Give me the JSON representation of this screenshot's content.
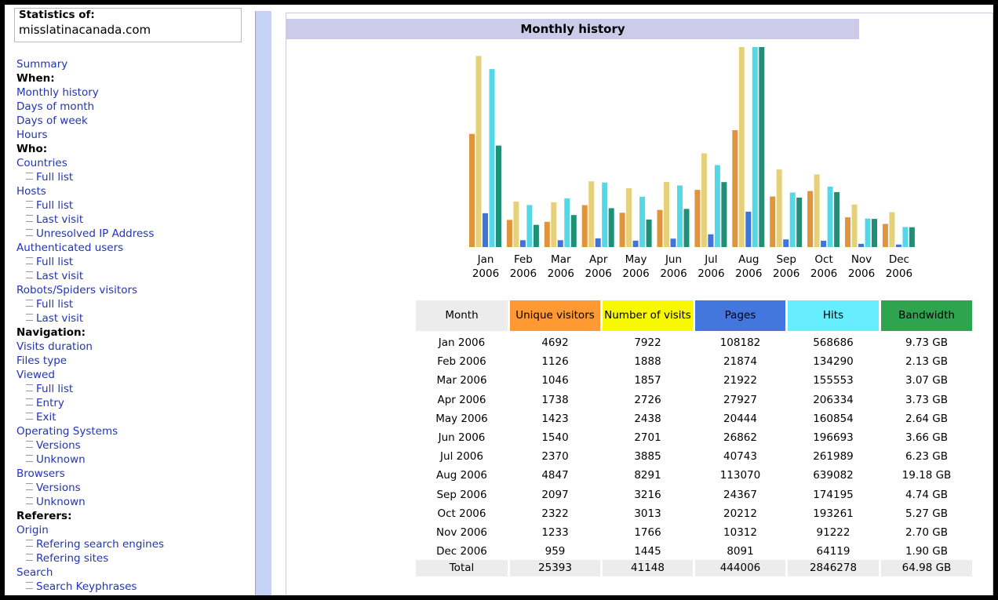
{
  "sidebar": {
    "heading": "Statistics of:",
    "site": "misslatinacanada.com",
    "items": [
      {
        "text": "Summary",
        "kind": "link"
      },
      {
        "text": "When:",
        "kind": "heading"
      },
      {
        "text": "Monthly history",
        "kind": "link"
      },
      {
        "text": "Days of month",
        "kind": "link"
      },
      {
        "text": "Days of week",
        "kind": "link"
      },
      {
        "text": "Hours",
        "kind": "link"
      },
      {
        "text": "Who:",
        "kind": "heading"
      },
      {
        "text": "Countries",
        "kind": "link"
      },
      {
        "text": "Full list",
        "kind": "sub"
      },
      {
        "text": "Hosts",
        "kind": "link"
      },
      {
        "text": "Full list",
        "kind": "sub"
      },
      {
        "text": "Last visit",
        "kind": "sub"
      },
      {
        "text": "Unresolved IP Address",
        "kind": "sub"
      },
      {
        "text": "Authenticated users",
        "kind": "link"
      },
      {
        "text": "Full list",
        "kind": "sub"
      },
      {
        "text": "Last visit",
        "kind": "sub"
      },
      {
        "text": "Robots/Spiders visitors",
        "kind": "link"
      },
      {
        "text": "Full list",
        "kind": "sub"
      },
      {
        "text": "Last visit",
        "kind": "sub"
      },
      {
        "text": "Navigation:",
        "kind": "heading"
      },
      {
        "text": "Visits duration",
        "kind": "link"
      },
      {
        "text": "Files type",
        "kind": "link"
      },
      {
        "text": "Viewed",
        "kind": "link"
      },
      {
        "text": "Full list",
        "kind": "sub"
      },
      {
        "text": "Entry",
        "kind": "sub"
      },
      {
        "text": "Exit",
        "kind": "sub"
      },
      {
        "text": "Operating Systems",
        "kind": "link"
      },
      {
        "text": "Versions",
        "kind": "sub"
      },
      {
        "text": "Unknown",
        "kind": "sub"
      },
      {
        "text": "Browsers",
        "kind": "link"
      },
      {
        "text": "Versions",
        "kind": "sub"
      },
      {
        "text": "Unknown",
        "kind": "sub"
      },
      {
        "text": "Referers:",
        "kind": "heading"
      },
      {
        "text": "Origin",
        "kind": "link"
      },
      {
        "text": "Refering search engines",
        "kind": "sub"
      },
      {
        "text": "Refering sites",
        "kind": "sub"
      },
      {
        "text": "Search",
        "kind": "link"
      },
      {
        "text": "Search Keyphrases",
        "kind": "sub"
      }
    ]
  },
  "panel": {
    "title": "Monthly history"
  },
  "chart": {
    "labels": [
      {
        "month": "Jan",
        "year": "2006"
      },
      {
        "month": "Feb",
        "year": "2006"
      },
      {
        "month": "Mar",
        "year": "2006"
      },
      {
        "month": "Apr",
        "year": "2006"
      },
      {
        "month": "May",
        "year": "2006"
      },
      {
        "month": "Jun",
        "year": "2006"
      },
      {
        "month": "Jul",
        "year": "2006"
      },
      {
        "month": "Aug",
        "year": "2006"
      },
      {
        "month": "Sep",
        "year": "2006"
      },
      {
        "month": "Oct",
        "year": "2006"
      },
      {
        "month": "Nov",
        "year": "2006"
      },
      {
        "month": "Dec",
        "year": "2006"
      }
    ],
    "bar_colors": [
      "#e0943c",
      "#e6d07a",
      "#3f74d8",
      "#52d8e8",
      "#1f9077"
    ]
  },
  "table": {
    "headers": [
      {
        "text": "Month",
        "color": "#ececec"
      },
      {
        "text": "Unique visitors",
        "color": "#ff9933"
      },
      {
        "text": "Number of visits",
        "color": "#f8f800"
      },
      {
        "text": "Pages",
        "color": "#4477dd"
      },
      {
        "text": "Hits",
        "color": "#66eeff"
      },
      {
        "text": "Bandwidth",
        "color": "#2ea44f"
      }
    ],
    "rows": [
      {
        "month": "Jan 2006",
        "unique": 4692,
        "visits": 7922,
        "pages": 108182,
        "hits": 568686,
        "bandwidth": {
          "value": 9.73,
          "label": "9.73 GB"
        }
      },
      {
        "month": "Feb 2006",
        "unique": 1126,
        "visits": 1888,
        "pages": 21874,
        "hits": 134290,
        "bandwidth": {
          "value": 2.13,
          "label": "2.13 GB"
        }
      },
      {
        "month": "Mar 2006",
        "unique": 1046,
        "visits": 1857,
        "pages": 21922,
        "hits": 155553,
        "bandwidth": {
          "value": 3.07,
          "label": "3.07 GB"
        }
      },
      {
        "month": "Apr 2006",
        "unique": 1738,
        "visits": 2726,
        "pages": 27927,
        "hits": 206334,
        "bandwidth": {
          "value": 3.73,
          "label": "3.73 GB"
        }
      },
      {
        "month": "May 2006",
        "unique": 1423,
        "visits": 2438,
        "pages": 20444,
        "hits": 160854,
        "bandwidth": {
          "value": 2.64,
          "label": "2.64 GB"
        }
      },
      {
        "month": "Jun 2006",
        "unique": 1540,
        "visits": 2701,
        "pages": 26862,
        "hits": 196693,
        "bandwidth": {
          "value": 3.66,
          "label": "3.66 GB"
        }
      },
      {
        "month": "Jul 2006",
        "unique": 2370,
        "visits": 3885,
        "pages": 40743,
        "hits": 261989,
        "bandwidth": {
          "value": 6.23,
          "label": "6.23 GB"
        }
      },
      {
        "month": "Aug 2006",
        "unique": 4847,
        "visits": 8291,
        "pages": 113070,
        "hits": 639082,
        "bandwidth": {
          "value": 19.18,
          "label": "19.18 GB"
        }
      },
      {
        "month": "Sep 2006",
        "unique": 2097,
        "visits": 3216,
        "pages": 24367,
        "hits": 174195,
        "bandwidth": {
          "value": 4.74,
          "label": "4.74 GB"
        }
      },
      {
        "month": "Oct 2006",
        "unique": 2322,
        "visits": 3013,
        "pages": 20212,
        "hits": 193261,
        "bandwidth": {
          "value": 5.27,
          "label": "5.27 GB"
        }
      },
      {
        "month": "Nov 2006",
        "unique": 1233,
        "visits": 1766,
        "pages": 10312,
        "hits": 91222,
        "bandwidth": {
          "value": 2.7,
          "label": "2.70 GB"
        }
      },
      {
        "month": "Dec 2006",
        "unique": 959,
        "visits": 1445,
        "pages": 8091,
        "hits": 64119,
        "bandwidth": {
          "value": 1.9,
          "label": "1.90 GB"
        }
      }
    ],
    "total": {
      "month": "Total",
      "unique": 25393,
      "visits": 41148,
      "pages": 444006,
      "hits": 2846278,
      "bandwidth": {
        "value": 64.98,
        "label": "64.98 GB"
      }
    }
  }
}
